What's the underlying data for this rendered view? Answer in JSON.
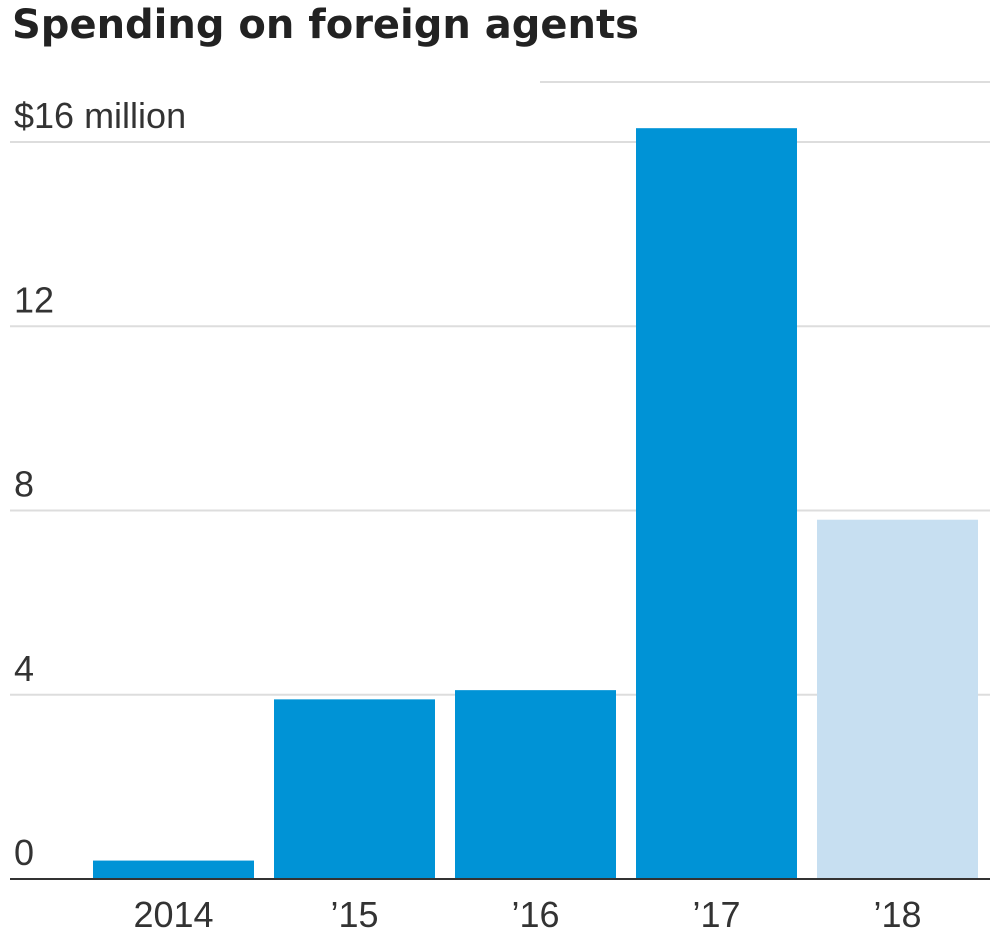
{
  "title": "Spending on foreign agents",
  "chart_data": {
    "type": "bar",
    "categories": [
      "2014",
      "’15",
      "’16",
      "’17",
      "’18"
    ],
    "values": [
      0.4,
      3.9,
      4.1,
      16.3,
      7.8
    ],
    "ylim": [
      0,
      16
    ],
    "yticks": [
      0,
      4,
      8,
      12,
      16
    ],
    "ytick_labels": [
      "0",
      "4",
      "8",
      "12",
      "$16 million"
    ],
    "grid": true,
    "colors": {
      "bar": "#0093d6",
      "bar_partial": "#c7dff1",
      "grid": "#dddddd",
      "axis": "#333333"
    },
    "partial_year_index": 4
  }
}
